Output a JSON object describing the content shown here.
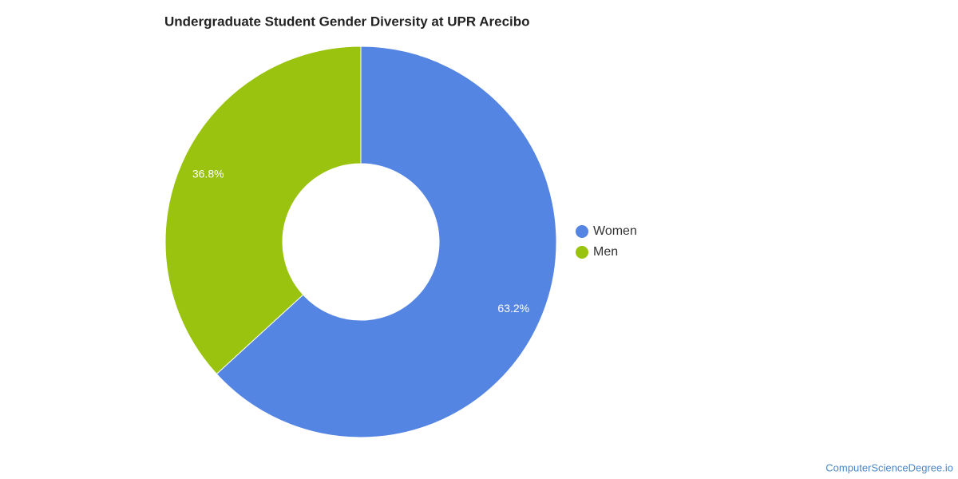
{
  "chart_data": {
    "type": "donut",
    "title": "Undergraduate Student Gender Diversity at UPR Arecibo",
    "categories": [
      "Women",
      "Men"
    ],
    "values": [
      63.2,
      36.8
    ],
    "value_labels": [
      "63.2%",
      "36.8%"
    ],
    "colors": [
      "#5485e3",
      "#99c30e"
    ],
    "legend": "right",
    "source": "ComputerScienceDegree.io"
  }
}
